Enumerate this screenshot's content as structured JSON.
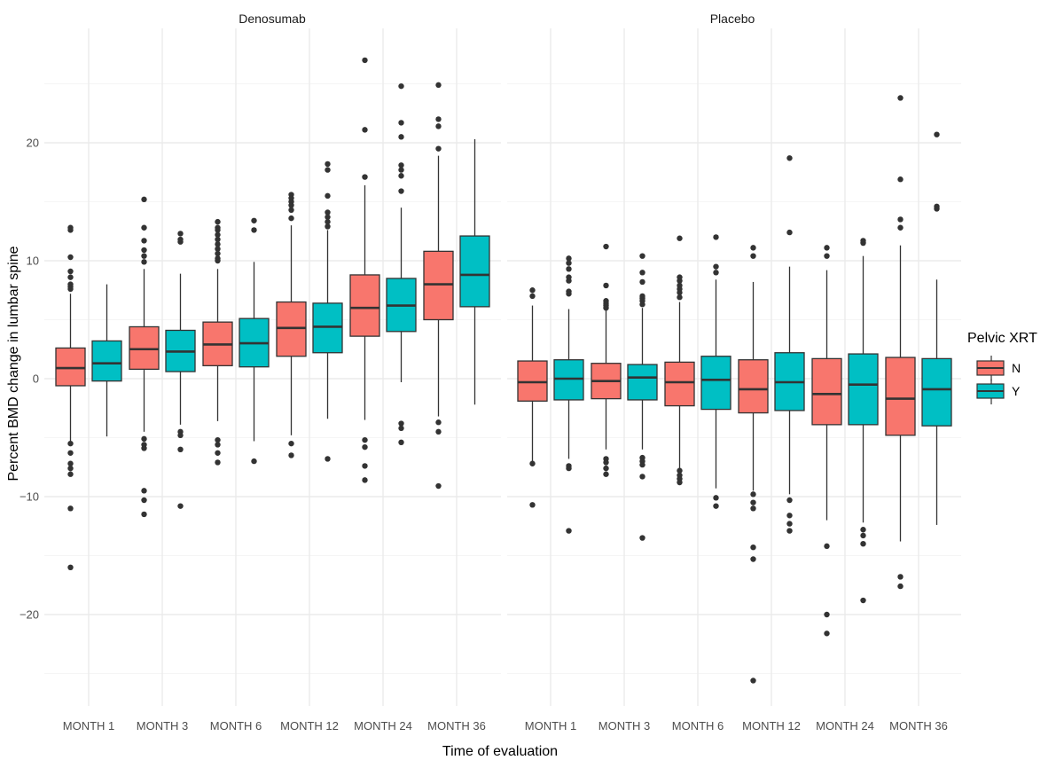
{
  "chart_data": {
    "type": "boxplot",
    "title": "",
    "xlabel": "Time of evaluation",
    "ylabel": "Percent BMD change in lumbar spine",
    "ylim": [
      -28,
      28.5
    ],
    "y_ticks": [
      -20,
      -10,
      0,
      10,
      20
    ],
    "y_tick_labels": [
      "−20",
      "−10",
      "0",
      "10",
      "20"
    ],
    "grid": true,
    "legend": {
      "title": "Pelvic XRT",
      "placement": "right",
      "entries": [
        {
          "label": "N",
          "color": "#F8766D"
        },
        {
          "label": "Y",
          "color": "#00BFC4"
        }
      ]
    },
    "categories": [
      "MONTH 1",
      "MONTH 3",
      "MONTH 6",
      "MONTH 12",
      "MONTH 24",
      "MONTH 36"
    ],
    "facets": [
      {
        "name": "Denosumab",
        "groups": [
          {
            "category": "MONTH 1",
            "series": "N",
            "whisker_low": -5.3,
            "q1": -0.6,
            "median": 0.9,
            "q3": 2.6,
            "whisker_high": 7.2,
            "outliers": [
              12.8,
              12.6,
              10.3,
              9.1,
              8.6,
              8.0,
              7.8,
              7.6,
              -5.5,
              -6.3,
              -7.2,
              -7.6,
              -8.1,
              -11.0,
              -16.0
            ]
          },
          {
            "category": "MONTH 1",
            "series": "Y",
            "whisker_low": -4.9,
            "q1": -0.2,
            "median": 1.3,
            "q3": 3.2,
            "whisker_high": 8.0,
            "outliers": []
          },
          {
            "category": "MONTH 3",
            "series": "N",
            "whisker_low": -4.5,
            "q1": 0.8,
            "median": 2.5,
            "q3": 4.4,
            "whisker_high": 9.3,
            "outliers": [
              15.2,
              12.8,
              11.7,
              10.9,
              10.4,
              9.9,
              -5.1,
              -5.6,
              -5.9,
              -9.5,
              -10.3,
              -11.5
            ]
          },
          {
            "category": "MONTH 3",
            "series": "Y",
            "whisker_low": -3.9,
            "q1": 0.6,
            "median": 2.3,
            "q3": 4.1,
            "whisker_high": 8.9,
            "outliers": [
              12.3,
              11.8,
              11.6,
              -4.5,
              -4.8,
              -6.0,
              -10.8
            ]
          },
          {
            "category": "MONTH 6",
            "series": "N",
            "whisker_low": -3.6,
            "q1": 1.1,
            "median": 2.9,
            "q3": 4.8,
            "whisker_high": 9.3,
            "outliers": [
              13.3,
              12.8,
              12.6,
              12.2,
              11.8,
              11.4,
              11.0,
              10.6,
              10.2,
              10.0,
              -5.2,
              -5.6,
              -6.3,
              -7.1
            ]
          },
          {
            "category": "MONTH 6",
            "series": "Y",
            "whisker_low": -5.3,
            "q1": 1.0,
            "median": 3.0,
            "q3": 5.1,
            "whisker_high": 9.9,
            "outliers": [
              13.4,
              12.6,
              -7.0
            ]
          },
          {
            "category": "MONTH 12",
            "series": "N",
            "whisker_low": -4.8,
            "q1": 1.9,
            "median": 4.3,
            "q3": 6.5,
            "whisker_high": 13.0,
            "outliers": [
              15.6,
              15.3,
              15.0,
              14.7,
              14.3,
              13.6,
              -5.5,
              -6.5
            ]
          },
          {
            "category": "MONTH 12",
            "series": "Y",
            "whisker_low": -3.4,
            "q1": 2.2,
            "median": 4.4,
            "q3": 6.4,
            "whisker_high": 12.6,
            "outliers": [
              18.2,
              17.7,
              15.5,
              14.1,
              13.7,
              13.3,
              12.9,
              -6.8
            ]
          },
          {
            "category": "MONTH 24",
            "series": "N",
            "whisker_low": -3.5,
            "q1": 3.6,
            "median": 6.0,
            "q3": 8.8,
            "whisker_high": 16.4,
            "outliers": [
              27.0,
              21.1,
              17.1,
              -5.2,
              -5.8,
              -7.4,
              -8.6
            ]
          },
          {
            "category": "MONTH 24",
            "series": "Y",
            "whisker_low": -0.3,
            "q1": 4.0,
            "median": 6.2,
            "q3": 8.5,
            "whisker_high": 14.5,
            "outliers": [
              24.8,
              21.7,
              20.5,
              18.1,
              17.7,
              17.2,
              15.9,
              -3.8,
              -4.2,
              -5.4
            ]
          },
          {
            "category": "MONTH 36",
            "series": "N",
            "whisker_low": -3.2,
            "q1": 5.0,
            "median": 8.0,
            "q3": 10.8,
            "whisker_high": 18.9,
            "outliers": [
              24.9,
              22.0,
              21.4,
              19.5,
              -3.7,
              -4.5,
              -9.1
            ]
          },
          {
            "category": "MONTH 36",
            "series": "Y",
            "whisker_low": -2.2,
            "q1": 6.1,
            "median": 8.8,
            "q3": 12.1,
            "whisker_high": 20.3,
            "outliers": []
          }
        ]
      },
      {
        "name": "Placebo",
        "groups": [
          {
            "category": "MONTH 1",
            "series": "N",
            "whisker_low": -7.0,
            "q1": -1.9,
            "median": -0.3,
            "q3": 1.5,
            "whisker_high": 6.2,
            "outliers": [
              7.5,
              7.0,
              -7.2,
              -10.7
            ]
          },
          {
            "category": "MONTH 1",
            "series": "Y",
            "whisker_low": -6.8,
            "q1": -1.8,
            "median": 0.0,
            "q3": 1.6,
            "whisker_high": 5.9,
            "outliers": [
              10.2,
              9.8,
              9.3,
              8.6,
              8.3,
              7.4,
              7.2,
              -7.4,
              -7.6,
              -12.9
            ]
          },
          {
            "category": "MONTH 3",
            "series": "N",
            "whisker_low": -6.0,
            "q1": -1.7,
            "median": -0.2,
            "q3": 1.3,
            "whisker_high": 5.9,
            "outliers": [
              11.2,
              7.9,
              6.6,
              6.4,
              6.2,
              6.0,
              -6.8,
              -7.1,
              -7.6,
              -8.1
            ]
          },
          {
            "category": "MONTH 3",
            "series": "Y",
            "whisker_low": -6.0,
            "q1": -1.8,
            "median": 0.1,
            "q3": 1.2,
            "whisker_high": 6.0,
            "outliers": [
              10.4,
              9.0,
              8.2,
              7.0,
              6.8,
              6.6,
              6.3,
              -6.7,
              -7.0,
              -7.3,
              -8.3,
              -13.5
            ]
          },
          {
            "category": "MONTH 6",
            "series": "N",
            "whisker_low": -7.7,
            "q1": -2.3,
            "median": -0.3,
            "q3": 1.4,
            "whisker_high": 6.5,
            "outliers": [
              11.9,
              8.6,
              8.3,
              7.9,
              7.6,
              7.3,
              6.9,
              -7.8,
              -8.2,
              -8.5,
              -8.8
            ]
          },
          {
            "category": "MONTH 6",
            "series": "Y",
            "whisker_low": -9.3,
            "q1": -2.6,
            "median": -0.1,
            "q3": 1.9,
            "whisker_high": 8.4,
            "outliers": [
              12.0,
              9.5,
              9.0,
              -10.1,
              -10.8
            ]
          },
          {
            "category": "MONTH 12",
            "series": "N",
            "whisker_low": -9.5,
            "q1": -2.9,
            "median": -0.9,
            "q3": 1.6,
            "whisker_high": 8.2,
            "outliers": [
              11.1,
              10.4,
              -9.8,
              -10.5,
              -11.0,
              -14.3,
              -15.3,
              -25.6
            ]
          },
          {
            "category": "MONTH 12",
            "series": "Y",
            "whisker_low": -9.8,
            "q1": -2.7,
            "median": -0.3,
            "q3": 2.2,
            "whisker_high": 9.5,
            "outliers": [
              18.7,
              12.4,
              -10.3,
              -11.6,
              -12.3,
              -12.9
            ]
          },
          {
            "category": "MONTH 24",
            "series": "N",
            "whisker_low": -12.0,
            "q1": -3.9,
            "median": -1.3,
            "q3": 1.7,
            "whisker_high": 9.2,
            "outliers": [
              11.1,
              10.4,
              -14.2,
              -20.0,
              -21.6
            ]
          },
          {
            "category": "MONTH 24",
            "series": "Y",
            "whisker_low": -12.2,
            "q1": -3.9,
            "median": -0.5,
            "q3": 2.1,
            "whisker_high": 10.4,
            "outliers": [
              11.7,
              11.5,
              -12.8,
              -13.3,
              -14.0,
              -18.8
            ]
          },
          {
            "category": "MONTH 36",
            "series": "N",
            "whisker_low": -13.8,
            "q1": -4.8,
            "median": -1.7,
            "q3": 1.8,
            "whisker_high": 11.3,
            "outliers": [
              23.8,
              16.9,
              13.5,
              12.8,
              -16.8,
              -17.6
            ]
          },
          {
            "category": "MONTH 36",
            "series": "Y",
            "whisker_low": -12.4,
            "q1": -4.0,
            "median": -0.9,
            "q3": 1.7,
            "whisker_high": 8.4,
            "outliers": [
              20.7,
              14.6,
              14.4
            ]
          }
        ]
      }
    ]
  }
}
